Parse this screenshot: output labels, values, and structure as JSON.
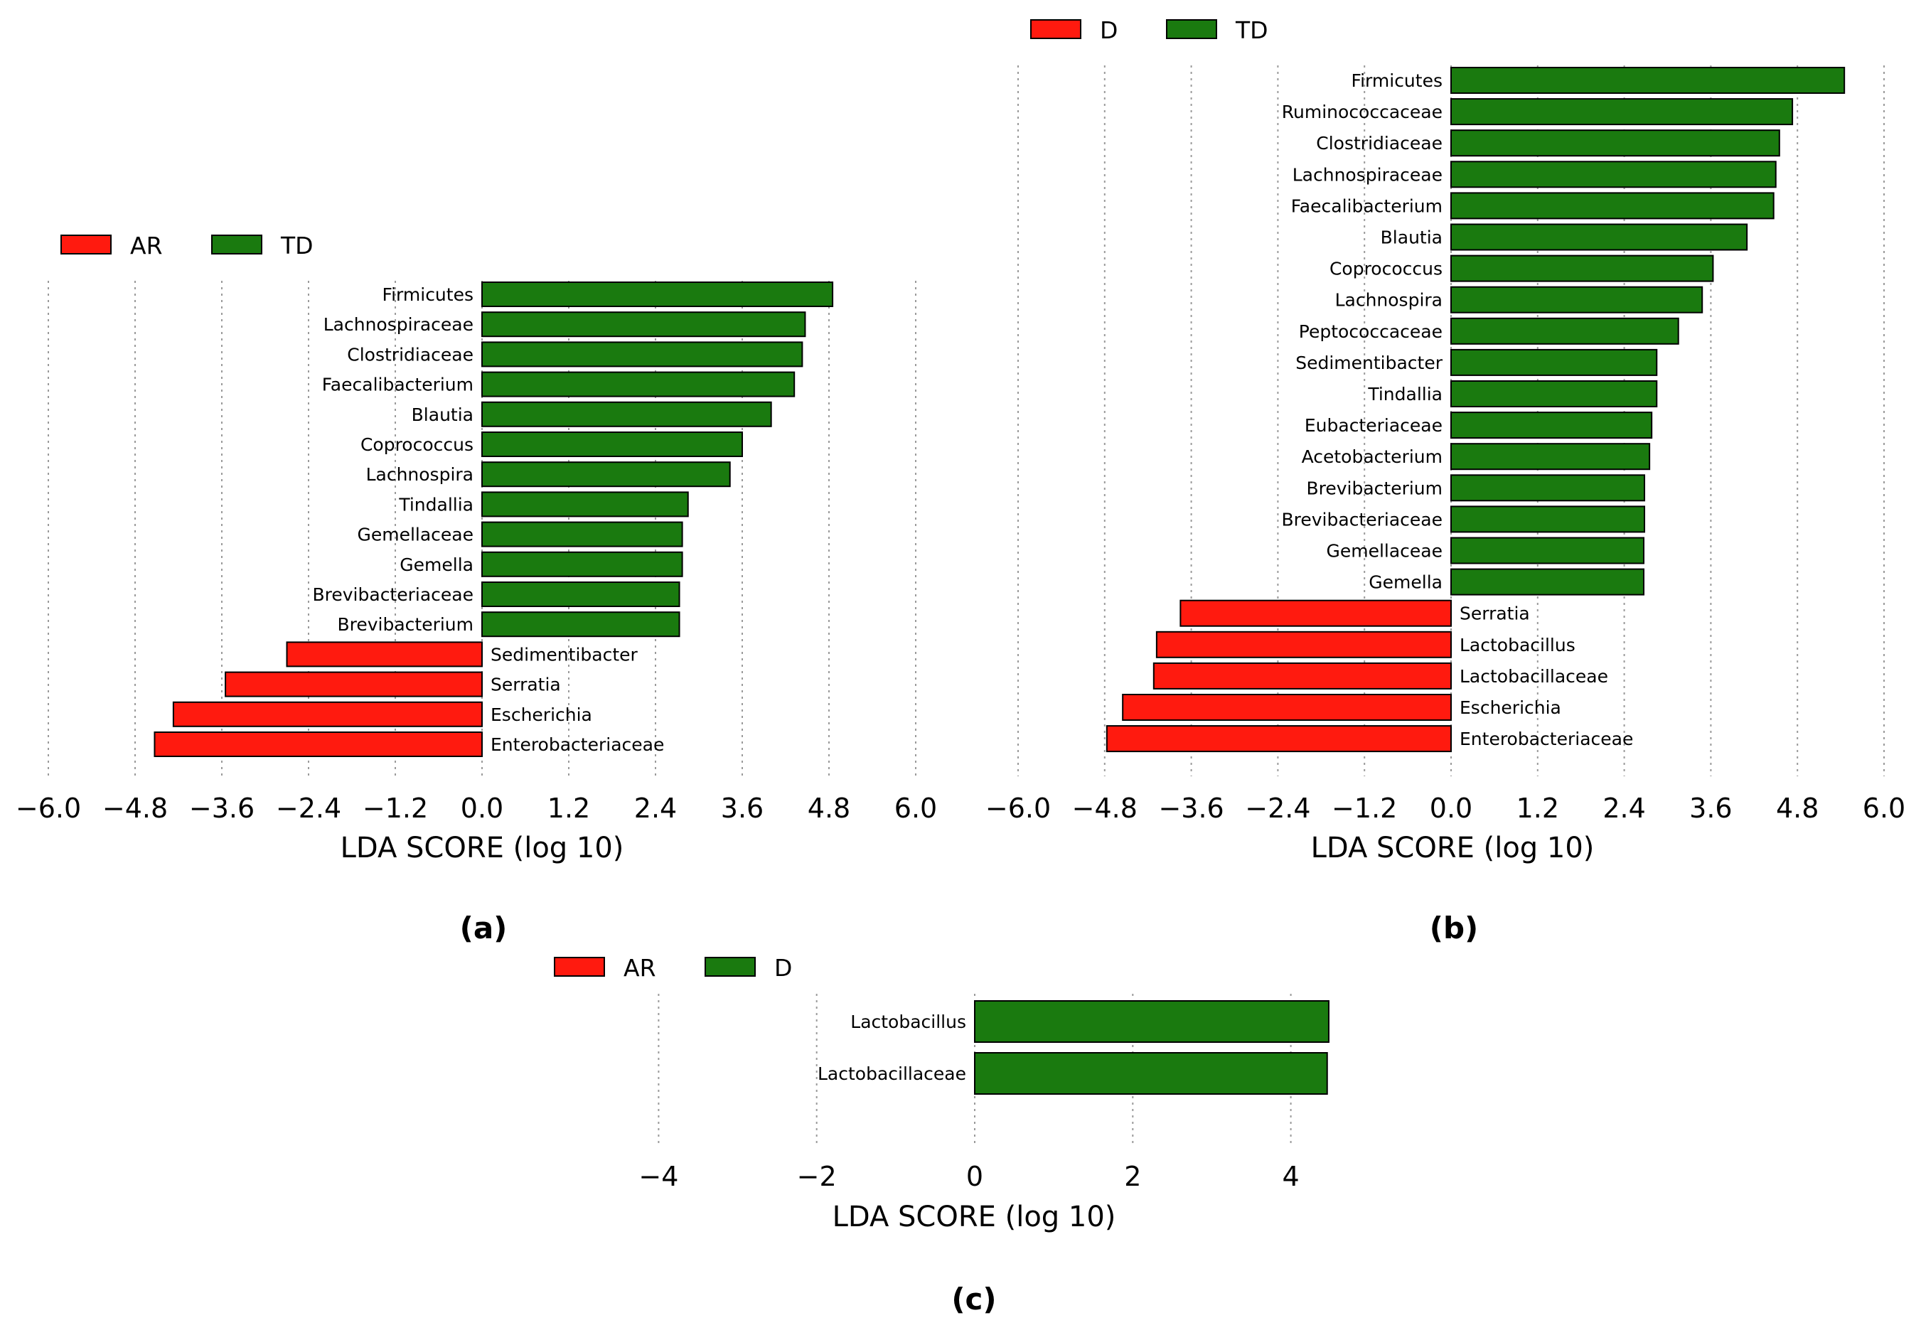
{
  "figure": {
    "panel_labels": [
      "(a)",
      "(b)",
      "(c)"
    ]
  },
  "colors": {
    "enriched": "#1a7a0f",
    "depleted": "#ff1a0f",
    "bar_edge": "#000000",
    "grid": "#9a9a9a"
  },
  "chart_data": [
    {
      "panel": "(a)",
      "type": "bar",
      "orientation": "horizontal",
      "xlabel": "LDA SCORE (log 10)",
      "xlim": [
        -6.0,
        6.0
      ],
      "xticks": [
        -6.0,
        -4.8,
        -3.6,
        -2.4,
        -1.2,
        0.0,
        1.2,
        2.4,
        3.6,
        4.8,
        6.0
      ],
      "tick_labels": [
        "−6.0",
        "−4.8",
        "−3.6",
        "−2.4",
        "−1.2",
        "0.0",
        "1.2",
        "2.4",
        "3.6",
        "4.8",
        "6.0"
      ],
      "grid": "vertical dotted",
      "legend": [
        {
          "name": "AR",
          "color": "#ff1a0f"
        },
        {
          "name": "TD",
          "color": "#1a7a0f"
        }
      ],
      "bars": [
        {
          "label": "Firmicutes",
          "value": 4.85,
          "group": "TD"
        },
        {
          "label": "Lachnospiraceae",
          "value": 4.47,
          "group": "TD"
        },
        {
          "label": "Clostridiaceae",
          "value": 4.43,
          "group": "TD"
        },
        {
          "label": "Faecalibacterium",
          "value": 4.32,
          "group": "TD"
        },
        {
          "label": "Blautia",
          "value": 4.0,
          "group": "TD"
        },
        {
          "label": "Coprococcus",
          "value": 3.6,
          "group": "TD"
        },
        {
          "label": "Lachnospira",
          "value": 3.43,
          "group": "TD"
        },
        {
          "label": "Tindallia",
          "value": 2.85,
          "group": "TD"
        },
        {
          "label": "Gemellaceae",
          "value": 2.77,
          "group": "TD"
        },
        {
          "label": "Gemella",
          "value": 2.77,
          "group": "TD"
        },
        {
          "label": "Brevibacteriaceae",
          "value": 2.73,
          "group": "TD"
        },
        {
          "label": "Brevibacterium",
          "value": 2.73,
          "group": "TD"
        },
        {
          "label": "Sedimentibacter",
          "value": -2.7,
          "group": "AR"
        },
        {
          "label": "Serratia",
          "value": -3.55,
          "group": "AR"
        },
        {
          "label": "Escherichia",
          "value": -4.27,
          "group": "AR"
        },
        {
          "label": "Enterobacteriaceae",
          "value": -4.53,
          "group": "AR"
        }
      ]
    },
    {
      "panel": "(b)",
      "type": "bar",
      "orientation": "horizontal",
      "xlabel": "LDA SCORE (log 10)",
      "xlim": [
        -6.0,
        6.0
      ],
      "xticks": [
        -6.0,
        -4.8,
        -3.6,
        -2.4,
        -1.2,
        0.0,
        1.2,
        2.4,
        3.6,
        4.8,
        6.0
      ],
      "tick_labels": [
        "−6.0",
        "−4.8",
        "−3.6",
        "−2.4",
        "−1.2",
        "0.0",
        "1.2",
        "2.4",
        "3.6",
        "4.8",
        "6.0"
      ],
      "grid": "vertical dotted",
      "legend": [
        {
          "name": "D",
          "color": "#ff1a0f"
        },
        {
          "name": "TD",
          "color": "#1a7a0f"
        }
      ],
      "bars": [
        {
          "label": "Firmicutes",
          "value": 5.45,
          "group": "TD"
        },
        {
          "label": "Ruminococcaceae",
          "value": 4.73,
          "group": "TD"
        },
        {
          "label": "Clostridiaceae",
          "value": 4.55,
          "group": "TD"
        },
        {
          "label": "Lachnospiraceae",
          "value": 4.5,
          "group": "TD"
        },
        {
          "label": "Faecalibacterium",
          "value": 4.47,
          "group": "TD"
        },
        {
          "label": "Blautia",
          "value": 4.1,
          "group": "TD"
        },
        {
          "label": "Coprococcus",
          "value": 3.63,
          "group": "TD"
        },
        {
          "label": "Lachnospira",
          "value": 3.48,
          "group": "TD"
        },
        {
          "label": "Peptococcaceae",
          "value": 3.15,
          "group": "TD"
        },
        {
          "label": "Sedimentibacter",
          "value": 2.85,
          "group": "TD"
        },
        {
          "label": "Tindallia",
          "value": 2.85,
          "group": "TD"
        },
        {
          "label": "Eubacteriaceae",
          "value": 2.78,
          "group": "TD"
        },
        {
          "label": "Acetobacterium",
          "value": 2.75,
          "group": "TD"
        },
        {
          "label": "Brevibacterium",
          "value": 2.68,
          "group": "TD"
        },
        {
          "label": "Brevibacteriaceae",
          "value": 2.68,
          "group": "TD"
        },
        {
          "label": "Gemellaceae",
          "value": 2.67,
          "group": "TD"
        },
        {
          "label": "Gemella",
          "value": 2.67,
          "group": "TD"
        },
        {
          "label": "Serratia",
          "value": -3.75,
          "group": "D"
        },
        {
          "label": "Lactobacillus",
          "value": -4.08,
          "group": "D"
        },
        {
          "label": "Lactobacillaceae",
          "value": -4.12,
          "group": "D"
        },
        {
          "label": "Escherichia",
          "value": -4.55,
          "group": "D"
        },
        {
          "label": "Enterobacteriaceae",
          "value": -4.77,
          "group": "D"
        }
      ]
    },
    {
      "panel": "(c)",
      "type": "bar",
      "orientation": "horizontal",
      "xlabel": "LDA SCORE (log 10)",
      "xlim": [
        -5.2,
        5.2
      ],
      "xticks": [
        -4,
        -2,
        0,
        2,
        4
      ],
      "tick_labels": [
        "−4",
        "−2",
        "0",
        "2",
        "4"
      ],
      "grid": "vertical dotted",
      "legend": [
        {
          "name": "AR",
          "color": "#ff1a0f"
        },
        {
          "name": "D",
          "color": "#1a7a0f"
        }
      ],
      "bars": [
        {
          "label": "Lactobacillus",
          "value": 4.48,
          "group": "D"
        },
        {
          "label": "Lactobacillaceae",
          "value": 4.46,
          "group": "D"
        }
      ]
    }
  ]
}
